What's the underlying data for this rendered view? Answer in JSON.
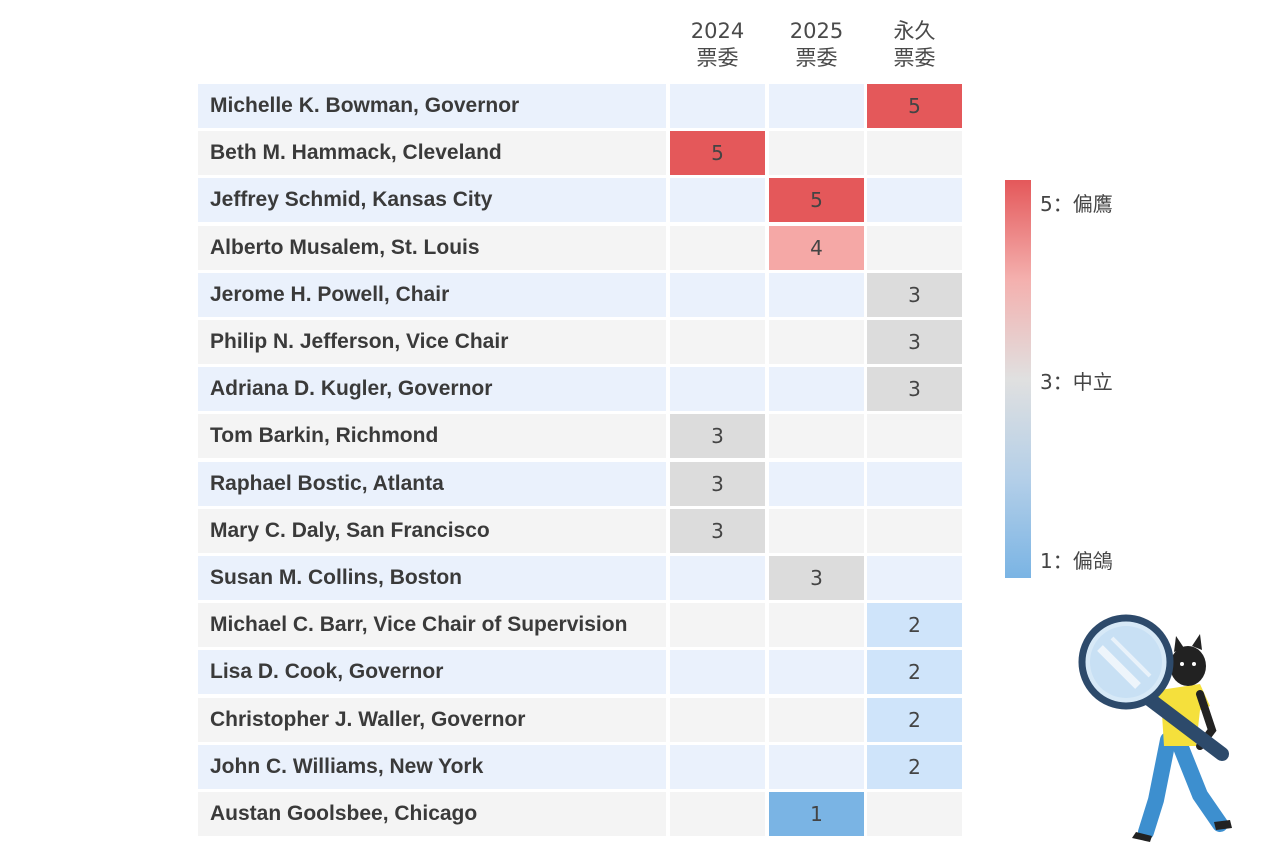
{
  "chart_data": {
    "type": "heatmap",
    "columns": [
      "2024\n票委",
      "2025\n票委",
      "永久\n票委"
    ],
    "rows": [
      {
        "name": "Michelle K. Bowman, Governor",
        "col": 2,
        "value": 5
      },
      {
        "name": "Beth M. Hammack, Cleveland",
        "col": 0,
        "value": 5
      },
      {
        "name": "Jeffrey Schmid, Kansas City",
        "col": 1,
        "value": 5
      },
      {
        "name": "Alberto Musalem, St. Louis",
        "col": 1,
        "value": 4
      },
      {
        "name": "Jerome H. Powell, Chair",
        "col": 2,
        "value": 3
      },
      {
        "name": "Philip N. Jefferson, Vice Chair",
        "col": 2,
        "value": 3
      },
      {
        "name": "Adriana D. Kugler, Governor",
        "col": 2,
        "value": 3
      },
      {
        "name": "Tom Barkin, Richmond",
        "col": 0,
        "value": 3
      },
      {
        "name": "Raphael Bostic, Atlanta",
        "col": 0,
        "value": 3
      },
      {
        "name": "Mary C. Daly, San Francisco",
        "col": 0,
        "value": 3
      },
      {
        "name": "Susan M. Collins, Boston",
        "col": 1,
        "value": 3
      },
      {
        "name": "Michael C. Barr, Vice Chair of Supervision",
        "col": 2,
        "value": 2
      },
      {
        "name": "Lisa D. Cook, Governor",
        "col": 2,
        "value": 2
      },
      {
        "name": "Christopher J. Waller, Governor",
        "col": 2,
        "value": 2
      },
      {
        "name": "John C. Williams, New York",
        "col": 2,
        "value": 2
      },
      {
        "name": "Austan Goolsbee, Chicago",
        "col": 1,
        "value": 1
      }
    ],
    "value_colors": {
      "5": "#e4585a",
      "4": "#f5a8a6",
      "3": "#dcdcdc",
      "2": "#cfe4fa",
      "1": "#7ab4e4"
    },
    "legend": {
      "high": "5：偏鷹",
      "mid": "3：中立",
      "low": "1：偏鴿"
    },
    "stripe_colors": {
      "odd": "#eaf1fc",
      "even": "#f4f4f4"
    }
  },
  "mascot": {
    "icon": "cat-with-magnifying-glass-icon"
  }
}
